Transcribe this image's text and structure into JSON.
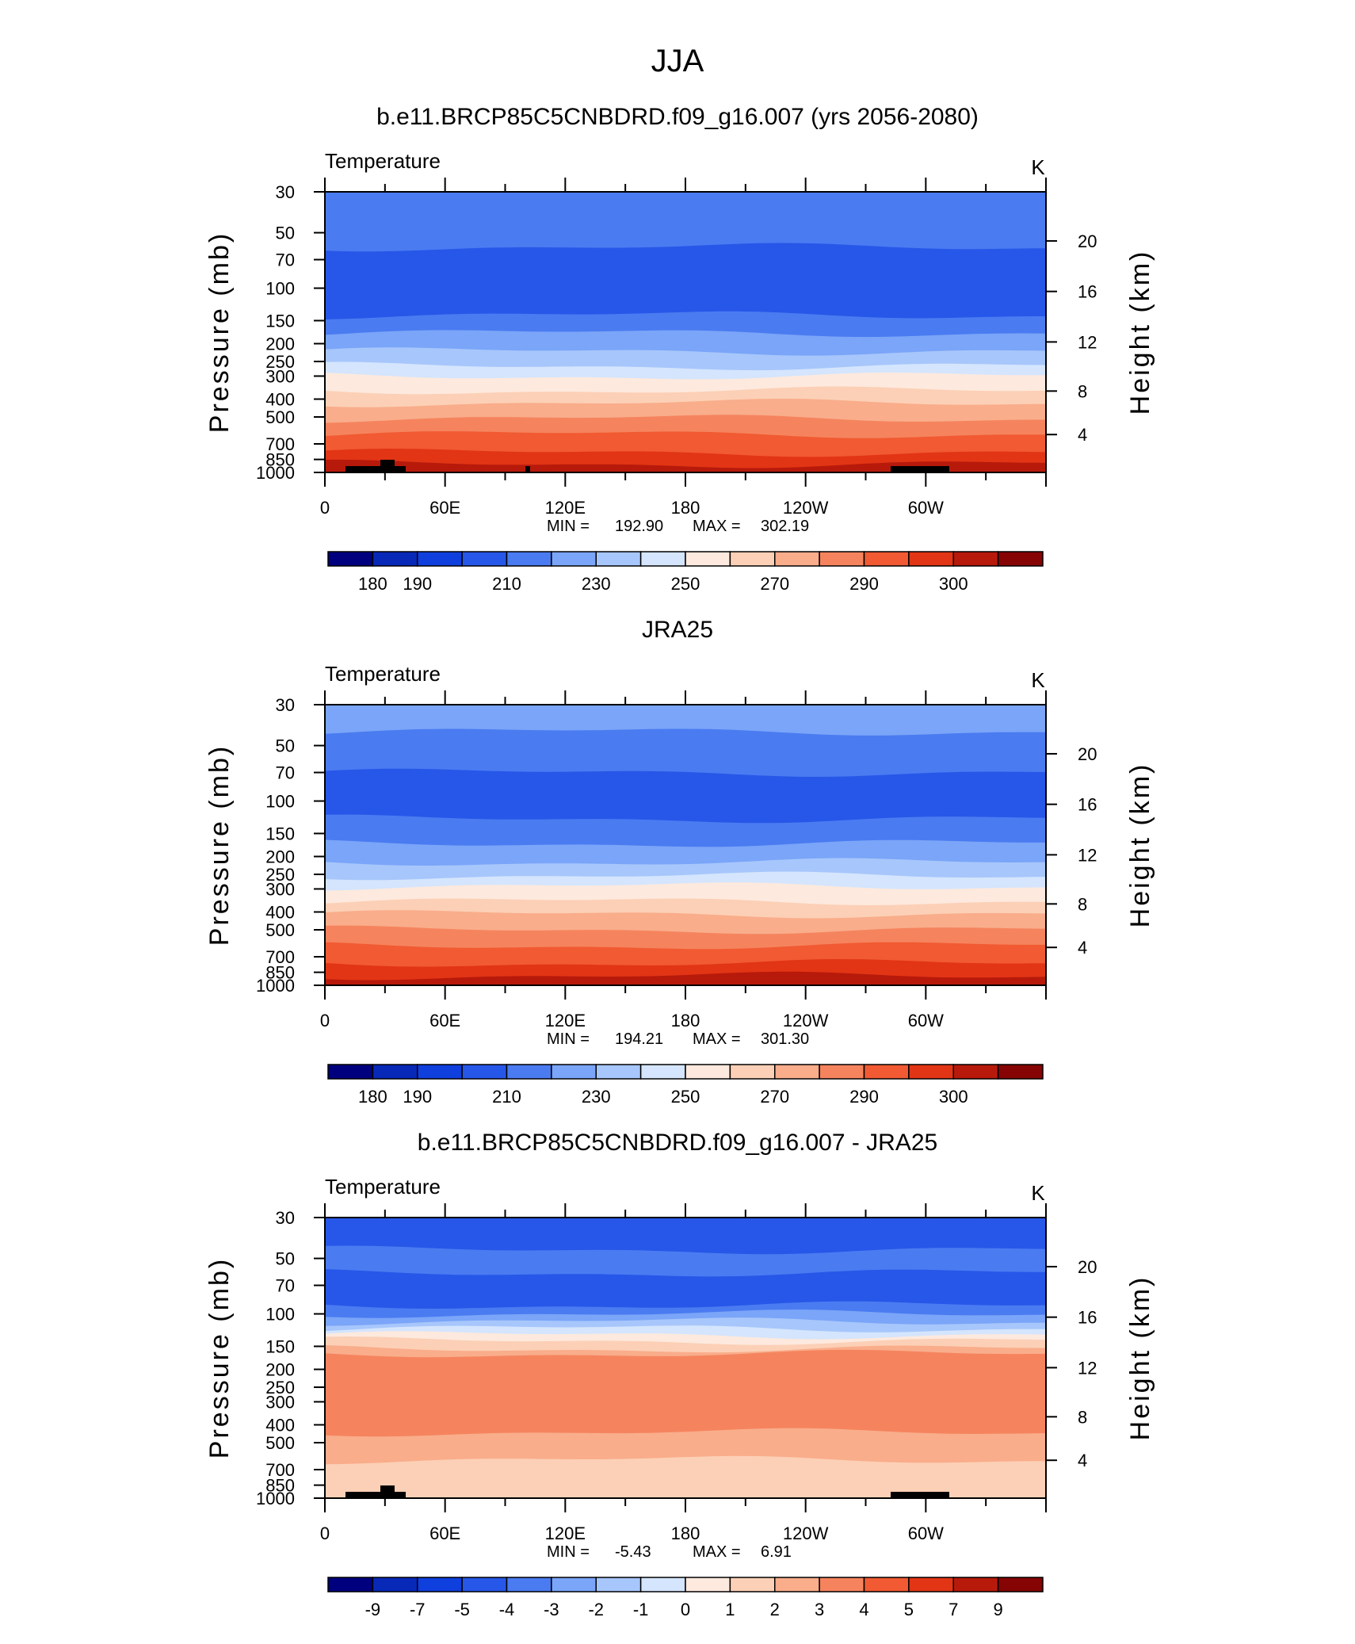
{
  "figure_title": "JJA",
  "palette": [
    "#00007f",
    "#0828b8",
    "#0f3fdd",
    "#2757e8",
    "#4a7bf1",
    "#7aa5f8",
    "#a7c6fb",
    "#d4e5fd",
    "#fde9de",
    "#fcd0b6",
    "#f9ad8b",
    "#f5845e",
    "#f15a32",
    "#e23515",
    "#b71a0b",
    "#860404"
  ],
  "chart_data": [
    {
      "type": "heatmap",
      "title": "b.e11.BRCP85C5CNBDRD.f09_g16.007 (yrs 2056-2080)",
      "left_label": "Temperature",
      "units": "K",
      "ylabel": "Pressure (mb)",
      "ylabel_right": "Height (km)",
      "x_ticks": [
        "0",
        "60E",
        "120E",
        "180",
        "120W",
        "60W"
      ],
      "x_range": [
        0,
        360
      ],
      "y_ticks": [
        "30",
        "50",
        "70",
        "100",
        "150",
        "200",
        "250",
        "300",
        "400",
        "500",
        "700",
        "850",
        "1000"
      ],
      "y_ticks_right": [
        "20",
        "16",
        "12",
        "8",
        "4"
      ],
      "min_label": "MIN =",
      "min_value": "192.90",
      "max_label": "MAX =",
      "max_value": "302.19",
      "colorbar_labels": [
        "180",
        "190",
        "210",
        "230",
        "250",
        "270",
        "290",
        "300"
      ],
      "bands": [
        {
          "p": 30,
          "level": 4
        },
        {
          "p": 60,
          "level": 3
        },
        {
          "p": 140,
          "level": 4
        },
        {
          "p": 175,
          "level": 5
        },
        {
          "p": 220,
          "level": 6
        },
        {
          "p": 265,
          "level": 7
        },
        {
          "p": 300,
          "level": 8
        },
        {
          "p": 360,
          "level": 9
        },
        {
          "p": 420,
          "level": 10
        },
        {
          "p": 510,
          "level": 11
        },
        {
          "p": 620,
          "level": 12
        },
        {
          "p": 780,
          "level": 13
        },
        {
          "p": 900,
          "level": 14
        }
      ],
      "has_topography": true
    },
    {
      "type": "heatmap",
      "title": "JRA25",
      "left_label": "Temperature",
      "units": "K",
      "ylabel": "Pressure (mb)",
      "ylabel_right": "Height (km)",
      "x_ticks": [
        "0",
        "60E",
        "120E",
        "180",
        "120W",
        "60W"
      ],
      "x_range": [
        0,
        360
      ],
      "y_ticks": [
        "30",
        "50",
        "70",
        "100",
        "150",
        "200",
        "250",
        "300",
        "400",
        "500",
        "700",
        "850",
        "1000"
      ],
      "y_ticks_right": [
        "20",
        "16",
        "12",
        "8",
        "4"
      ],
      "min_label": "MIN =",
      "min_value": "194.21",
      "max_label": "MAX =",
      "max_value": "301.30",
      "colorbar_labels": [
        "180",
        "190",
        "210",
        "230",
        "250",
        "270",
        "290",
        "300"
      ],
      "bands": [
        {
          "p": 30,
          "level": 5
        },
        {
          "p": 42,
          "level": 4
        },
        {
          "p": 70,
          "level": 3
        },
        {
          "p": 125,
          "level": 4
        },
        {
          "p": 170,
          "level": 5
        },
        {
          "p": 215,
          "level": 6
        },
        {
          "p": 255,
          "level": 7
        },
        {
          "p": 290,
          "level": 8
        },
        {
          "p": 350,
          "level": 9
        },
        {
          "p": 410,
          "level": 10
        },
        {
          "p": 500,
          "level": 11
        },
        {
          "p": 610,
          "level": 12
        },
        {
          "p": 760,
          "level": 13
        },
        {
          "p": 890,
          "level": 14
        }
      ],
      "has_topography": false
    },
    {
      "type": "heatmap",
      "title": "b.e11.BRCP85C5CNBDRD.f09_g16.007 - JRA25",
      "left_label": "Temperature",
      "units": "K",
      "ylabel": "Pressure (mb)",
      "ylabel_right": "Height (km)",
      "x_ticks": [
        "0",
        "60E",
        "120E",
        "180",
        "120W",
        "60W"
      ],
      "x_range": [
        0,
        360
      ],
      "y_ticks": [
        "30",
        "50",
        "70",
        "100",
        "150",
        "200",
        "250",
        "300",
        "400",
        "500",
        "700",
        "850",
        "1000"
      ],
      "y_ticks_right": [
        "20",
        "16",
        "12",
        "8",
        "4"
      ],
      "min_label": "MIN =",
      "min_value": "-5.43",
      "max_label": "MAX =",
      "max_value": "6.91",
      "colorbar_labels": [
        "-9",
        "-7",
        "-5",
        "-4",
        "-3",
        "-2",
        "-1",
        "0",
        "1",
        "2",
        "3",
        "4",
        "5",
        "7",
        "9"
      ],
      "bands": [
        {
          "p": 30,
          "level": 3
        },
        {
          "p": 45,
          "level": 4
        },
        {
          "p": 60,
          "level": 3
        },
        {
          "p": 90,
          "level": 4
        },
        {
          "p": 100,
          "level": 5
        },
        {
          "p": 110,
          "level": 6
        },
        {
          "p": 120,
          "level": 7
        },
        {
          "p": 130,
          "level": 8
        },
        {
          "p": 140,
          "level": 9
        },
        {
          "p": 155,
          "level": 10
        },
        {
          "p": 165,
          "level": 11
        },
        {
          "p": 440,
          "level": 10
        },
        {
          "p": 620,
          "level": 9
        }
      ],
      "has_topography": true
    }
  ]
}
